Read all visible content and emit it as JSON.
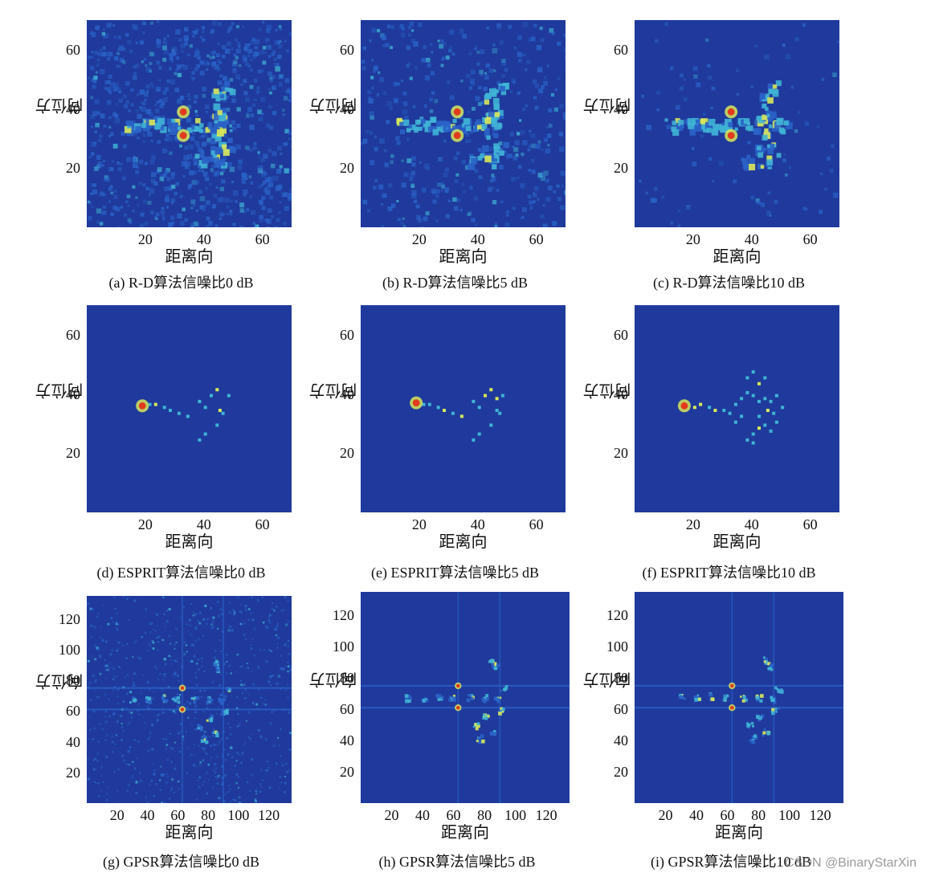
{
  "chart_data": [
    {
      "id": "a",
      "type": "heatmap",
      "caption": "(a)  R-D算法信噪比0 dB",
      "xlabel": "距离向",
      "ylabel": "方位向",
      "xticks": [
        20,
        40,
        60
      ],
      "yticks": [
        20,
        40,
        60
      ],
      "xlim": [
        0,
        70
      ],
      "ylim": [
        0,
        70
      ],
      "noise": 0.55,
      "hot": [
        [
          33,
          39
        ],
        [
          33,
          31
        ]
      ],
      "blobs": [
        [
          14,
          35
        ],
        [
          18,
          35
        ],
        [
          22,
          36
        ],
        [
          26,
          35
        ],
        [
          30,
          35
        ],
        [
          36,
          35
        ],
        [
          40,
          35
        ],
        [
          44,
          33
        ],
        [
          46,
          36
        ],
        [
          47,
          27
        ],
        [
          43,
          38
        ],
        [
          45,
          40
        ],
        [
          47,
          48
        ],
        [
          44,
          23
        ],
        [
          38,
          23
        ],
        [
          42,
          26
        ],
        [
          44,
          45
        ]
      ]
    },
    {
      "id": "b",
      "type": "heatmap",
      "caption": "(b)  R-D算法信噪比5 dB",
      "xlabel": "距离向",
      "ylabel": "方位向",
      "xticks": [
        20,
        40,
        60
      ],
      "yticks": [
        20,
        40,
        60
      ],
      "xlim": [
        0,
        70
      ],
      "ylim": [
        0,
        70
      ],
      "noise": 0.28,
      "hot": [
        [
          33,
          39
        ],
        [
          33,
          31
        ]
      ],
      "blobs": [
        [
          14,
          35
        ],
        [
          18,
          35
        ],
        [
          22,
          36
        ],
        [
          26,
          35
        ],
        [
          30,
          35
        ],
        [
          36,
          35
        ],
        [
          40,
          35
        ],
        [
          44,
          33
        ],
        [
          46,
          36
        ],
        [
          47,
          27
        ],
        [
          43,
          38
        ],
        [
          45,
          40
        ],
        [
          47,
          48
        ],
        [
          44,
          23
        ],
        [
          38,
          23
        ],
        [
          42,
          26
        ],
        [
          44,
          45
        ]
      ]
    },
    {
      "id": "c",
      "type": "heatmap",
      "caption": "(c)  R-D算法信噪比10 dB",
      "xlabel": "距离向",
      "ylabel": "方位向",
      "xticks": [
        20,
        40,
        60
      ],
      "yticks": [
        20,
        40,
        60
      ],
      "xlim": [
        0,
        70
      ],
      "ylim": [
        0,
        70
      ],
      "noise": 0.06,
      "hot": [
        [
          33,
          39
        ],
        [
          33,
          31
        ]
      ],
      "blobs": [
        [
          14,
          35
        ],
        [
          18,
          35
        ],
        [
          22,
          36
        ],
        [
          26,
          35
        ],
        [
          30,
          35
        ],
        [
          36,
          35
        ],
        [
          40,
          35
        ],
        [
          44,
          33
        ],
        [
          46,
          36
        ],
        [
          47,
          27
        ],
        [
          43,
          38
        ],
        [
          45,
          40
        ],
        [
          47,
          48
        ],
        [
          44,
          23
        ],
        [
          38,
          23
        ],
        [
          42,
          26
        ],
        [
          44,
          45
        ],
        [
          50,
          35
        ]
      ]
    },
    {
      "id": "d",
      "type": "heatmap",
      "caption": "(d)  ESPRIT算法信噪比0 dB",
      "xlabel": "距离向",
      "ylabel": "方位向",
      "xticks": [
        20,
        40,
        60
      ],
      "yticks": [
        20,
        40,
        60
      ],
      "xlim": [
        0,
        70
      ],
      "ylim": [
        0,
        70
      ],
      "noise": 0.0,
      "hot": [
        [
          19,
          36
        ]
      ],
      "sparse": [
        [
          21,
          37
        ],
        [
          23,
          37
        ],
        [
          26,
          36
        ],
        [
          28,
          35
        ],
        [
          31,
          34
        ],
        [
          34,
          33
        ],
        [
          38,
          38
        ],
        [
          40,
          36
        ],
        [
          42,
          40
        ],
        [
          44,
          42
        ],
        [
          45,
          35
        ],
        [
          46,
          34
        ],
        [
          44,
          30
        ],
        [
          40,
          27
        ],
        [
          38,
          25
        ],
        [
          48,
          40
        ]
      ]
    },
    {
      "id": "e",
      "type": "heatmap",
      "caption": "(e)  ESPRIT算法信噪比5 dB",
      "xlabel": "距离向",
      "ylabel": "方位向",
      "xticks": [
        20,
        40,
        60
      ],
      "yticks": [
        20,
        40,
        60
      ],
      "xlim": [
        0,
        70
      ],
      "ylim": [
        0,
        70
      ],
      "noise": 0.0,
      "hot": [
        [
          19,
          37
        ]
      ],
      "sparse": [
        [
          21,
          37
        ],
        [
          23,
          37
        ],
        [
          26,
          36
        ],
        [
          28,
          35
        ],
        [
          31,
          34
        ],
        [
          34,
          33
        ],
        [
          38,
          38
        ],
        [
          40,
          36
        ],
        [
          42,
          40
        ],
        [
          44,
          42
        ],
        [
          46,
          39
        ],
        [
          46,
          35
        ],
        [
          47,
          34
        ],
        [
          44,
          30
        ],
        [
          40,
          27
        ],
        [
          38,
          25
        ],
        [
          48,
          40
        ]
      ]
    },
    {
      "id": "f",
      "type": "heatmap",
      "caption": "(f)  ESPRIT算法信噪比10 dB",
      "xlabel": "距离向",
      "ylabel": "方位向",
      "xticks": [
        20,
        40,
        60
      ],
      "yticks": [
        20,
        40,
        60
      ],
      "xlim": [
        0,
        70
      ],
      "ylim": [
        0,
        70
      ],
      "noise": 0.0,
      "hot": [
        [
          17,
          36
        ]
      ],
      "sparse": [
        [
          20,
          36
        ],
        [
          22,
          37
        ],
        [
          25,
          36
        ],
        [
          27,
          35
        ],
        [
          30,
          35
        ],
        [
          32,
          34
        ],
        [
          34,
          37
        ],
        [
          36,
          39
        ],
        [
          38,
          41
        ],
        [
          40,
          40
        ],
        [
          42,
          38
        ],
        [
          44,
          39
        ],
        [
          46,
          38
        ],
        [
          45,
          35
        ],
        [
          47,
          34
        ],
        [
          44,
          30
        ],
        [
          40,
          27
        ],
        [
          38,
          25
        ],
        [
          40,
          24
        ],
        [
          42,
          44
        ],
        [
          44,
          46
        ],
        [
          38,
          46
        ],
        [
          40,
          48
        ],
        [
          48,
          40
        ],
        [
          50,
          36
        ],
        [
          36,
          33
        ],
        [
          42,
          33
        ],
        [
          34,
          31
        ],
        [
          48,
          31
        ],
        [
          46,
          28
        ],
        [
          42,
          29
        ]
      ]
    },
    {
      "id": "g",
      "type": "heatmap",
      "caption": "(g)  GPSR算法信噪比0 dB",
      "xlabel": "距离向",
      "ylabel": "方位向",
      "xticks": [
        20,
        40,
        60,
        80,
        100,
        120
      ],
      "yticks": [
        20,
        40,
        60,
        80,
        100,
        120
      ],
      "xlim": [
        0,
        135
      ],
      "ylim": [
        0,
        135
      ],
      "noise": 0.5,
      "hot": [
        [
          63,
          75
        ],
        [
          63,
          61
        ]
      ],
      "blobs": [
        [
          30,
          68
        ],
        [
          40,
          68
        ],
        [
          50,
          69
        ],
        [
          58,
          68
        ],
        [
          70,
          68
        ],
        [
          80,
          68
        ],
        [
          88,
          67
        ],
        [
          92,
          74
        ],
        [
          90,
          60
        ],
        [
          84,
          92
        ],
        [
          80,
          56
        ],
        [
          74,
          50
        ],
        [
          84,
          46
        ],
        [
          86,
          88
        ],
        [
          76,
          42
        ]
      ],
      "lines": {
        "h": [
          61,
          75
        ],
        "v": [
          63,
          90
        ]
      }
    },
    {
      "id": "h",
      "type": "heatmap",
      "caption": "(h)  GPSR算法信噪比5 dB",
      "xlabel": "距离向",
      "ylabel": "方位向",
      "xticks": [
        20,
        40,
        60,
        80,
        100,
        120
      ],
      "yticks": [
        20,
        40,
        60,
        80,
        100,
        120
      ],
      "xlim": [
        0,
        135
      ],
      "ylim": [
        0,
        135
      ],
      "noise": 0.0,
      "hot": [
        [
          63,
          75
        ],
        [
          63,
          61
        ]
      ],
      "blobs": [
        [
          30,
          68
        ],
        [
          40,
          68
        ],
        [
          50,
          69
        ],
        [
          58,
          68
        ],
        [
          70,
          68
        ],
        [
          80,
          68
        ],
        [
          88,
          67
        ],
        [
          92,
          74
        ],
        [
          90,
          60
        ],
        [
          84,
          92
        ],
        [
          80,
          56
        ],
        [
          74,
          50
        ],
        [
          84,
          46
        ],
        [
          86,
          88
        ],
        [
          76,
          42
        ]
      ],
      "lines": {
        "h": [
          61,
          75
        ],
        "v": [
          63,
          90
        ]
      }
    },
    {
      "id": "i",
      "type": "heatmap",
      "caption": "(i)  GPSR算法信噪比10 dB",
      "xlabel": "距离向",
      "ylabel": "方位向",
      "xticks": [
        20,
        40,
        60,
        80,
        100,
        120
      ],
      "yticks": [
        20,
        40,
        60,
        80,
        100,
        120
      ],
      "xlim": [
        0,
        135
      ],
      "ylim": [
        0,
        135
      ],
      "noise": 0.0,
      "hot": [
        [
          63,
          75
        ],
        [
          63,
          61
        ]
      ],
      "blobs": [
        [
          30,
          68
        ],
        [
          40,
          68
        ],
        [
          50,
          69
        ],
        [
          58,
          68
        ],
        [
          70,
          68
        ],
        [
          80,
          68
        ],
        [
          88,
          67
        ],
        [
          92,
          74
        ],
        [
          90,
          60
        ],
        [
          84,
          92
        ],
        [
          80,
          56
        ],
        [
          74,
          50
        ],
        [
          84,
          46
        ],
        [
          86,
          88
        ],
        [
          76,
          42
        ]
      ],
      "lines": {
        "h": [
          61,
          75
        ],
        "v": [
          63,
          90
        ]
      }
    }
  ],
  "colors": {
    "background": "#1f3a9c",
    "low": "#2a63c8",
    "mid": "#3fb4d6",
    "high": "#d8e85a",
    "hot": "#e23a1d"
  },
  "watermark": "CSDN @BinaryStarXin"
}
